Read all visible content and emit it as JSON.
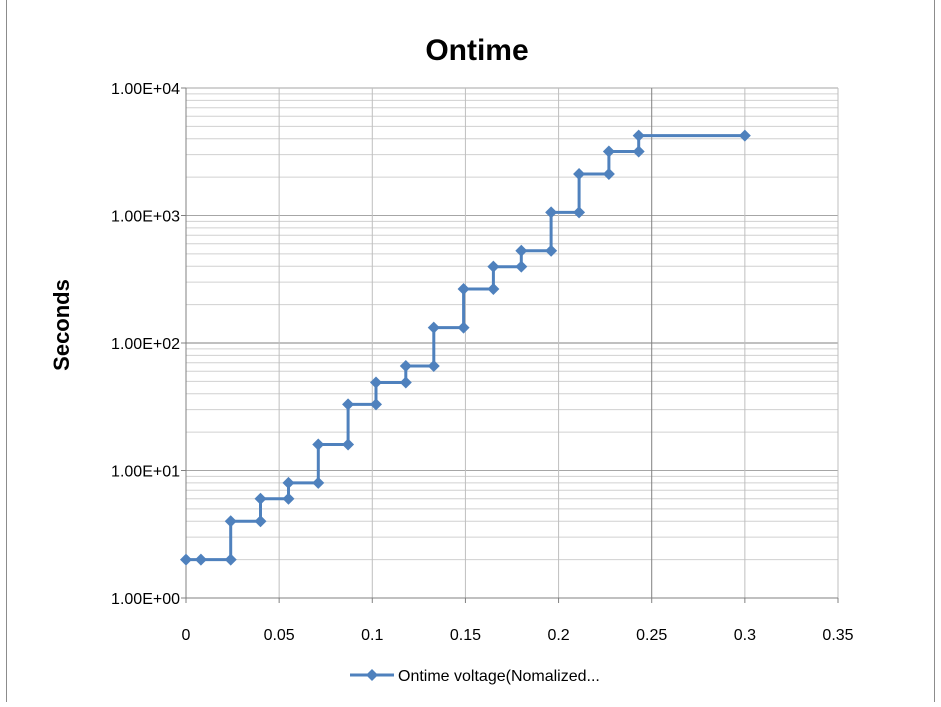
{
  "chart_data": {
    "type": "line",
    "title": "Ontime",
    "xlabel": "",
    "ylabel": "Seconds",
    "xlim": [
      0,
      0.35
    ],
    "ylim": [
      1,
      10000
    ],
    "y_scale": "log",
    "grid": true,
    "legend_position": "bottom",
    "x_ticks": [
      0,
      0.05,
      0.1,
      0.15,
      0.2,
      0.25,
      0.3,
      0.35
    ],
    "x_tick_labels": [
      "0",
      "0.05",
      "0.1",
      "0.15",
      "0.2",
      "0.25",
      "0.3",
      "0.35"
    ],
    "y_ticks": [
      1,
      10,
      100,
      1000,
      10000
    ],
    "y_tick_labels": [
      "1.00E+00",
      "1.00E+01",
      "1.00E+02",
      "1.00E+03",
      "1.00E+04"
    ],
    "series": [
      {
        "name": "Ontime voltage(Nomalized...",
        "color": "#4f81bd",
        "marker": "diamond",
        "x": [
          0,
          0.008,
          0.024,
          0.024,
          0.04,
          0.04,
          0.055,
          0.055,
          0.071,
          0.071,
          0.087,
          0.087,
          0.102,
          0.102,
          0.118,
          0.118,
          0.133,
          0.133,
          0.149,
          0.149,
          0.165,
          0.165,
          0.18,
          0.18,
          0.196,
          0.196,
          0.211,
          0.211,
          0.227,
          0.227,
          0.243,
          0.243,
          0.3
        ],
        "y": [
          2,
          2,
          2,
          4,
          4,
          6,
          6,
          8,
          8,
          16,
          16,
          33,
          33,
          49,
          49,
          66,
          66,
          132,
          132,
          265,
          265,
          397,
          397,
          529,
          529,
          1058,
          1058,
          2117,
          2117,
          3175,
          3175,
          4233,
          4233
        ]
      }
    ]
  }
}
